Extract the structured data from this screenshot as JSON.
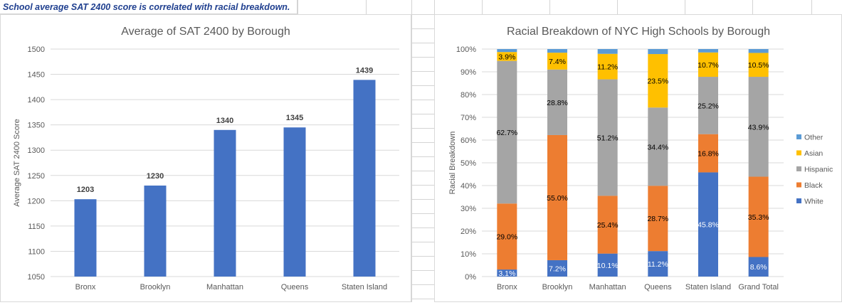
{
  "sheet_heading": "School average SAT 2400 score is correlated with racial breakdown.",
  "colors": {
    "blue": "#4472c4",
    "orange": "#ed7d31",
    "gray": "#a5a5a5",
    "yellow": "#ffc000",
    "other": "#5b9bd5"
  },
  "chart_data": [
    {
      "type": "bar",
      "title": "Average of SAT 2400 by Borough",
      "xlabel": "",
      "ylabel": "Average SAT 2400 Score",
      "categories": [
        "Bronx",
        "Brooklyn",
        "Manhattan",
        "Queens",
        "Staten Island"
      ],
      "values": [
        1203,
        1230,
        1340,
        1345,
        1439
      ],
      "data_labels": [
        "1203",
        "1230",
        "1340",
        "1345",
        "1439"
      ],
      "ylim": [
        1050,
        1500
      ],
      "yticks": [
        "1050",
        "1100",
        "1150",
        "1200",
        "1250",
        "1300",
        "1350",
        "1400",
        "1450",
        "1500"
      ],
      "grid": true,
      "legend": "none"
    },
    {
      "type": "bar",
      "stacked": "percent",
      "title": "Racial Breakdown of NYC High Schools by Borough",
      "xlabel": "",
      "ylabel": "Racial Breakdown",
      "categories": [
        "Bronx",
        "Brooklyn",
        "Manhattan",
        "Queens",
        "Staten Island",
        "Grand Total"
      ],
      "series": [
        {
          "name": "White",
          "values": [
            3.1,
            7.2,
            10.1,
            11.2,
            45.8,
            8.6
          ],
          "labels": [
            "3.1%",
            "7.2%",
            "10.1%",
            "11.2%",
            "45.8%",
            "8.6%"
          ]
        },
        {
          "name": "Black",
          "values": [
            29.0,
            55.0,
            25.4,
            28.7,
            16.8,
            35.3
          ],
          "labels": [
            "29.0%",
            "55.0%",
            "25.4%",
            "28.7%",
            "16.8%",
            "35.3%"
          ]
        },
        {
          "name": "Hispanic",
          "values": [
            62.7,
            28.8,
            51.2,
            34.4,
            25.2,
            43.9
          ],
          "labels": [
            "62.7%",
            "28.8%",
            "51.2%",
            "34.4%",
            "25.2%",
            "43.9%"
          ]
        },
        {
          "name": "Asian",
          "values": [
            3.9,
            7.4,
            11.2,
            23.5,
            10.7,
            10.5
          ],
          "labels": [
            "3.9%",
            "7.4%",
            "11.2%",
            "23.5%",
            "10.7%",
            "10.5%"
          ]
        },
        {
          "name": "Other",
          "values": [
            1.3,
            1.6,
            2.1,
            2.2,
            1.5,
            1.7
          ],
          "labels": [
            "",
            "",
            "",
            "",
            "",
            ""
          ]
        }
      ],
      "ylim": [
        0,
        100
      ],
      "yticks": [
        "0%",
        "10%",
        "20%",
        "30%",
        "40%",
        "50%",
        "60%",
        "70%",
        "80%",
        "90%",
        "100%"
      ],
      "legend": "right",
      "legend_order": [
        "Other",
        "Asian",
        "Hispanic",
        "Black",
        "White"
      ]
    }
  ]
}
